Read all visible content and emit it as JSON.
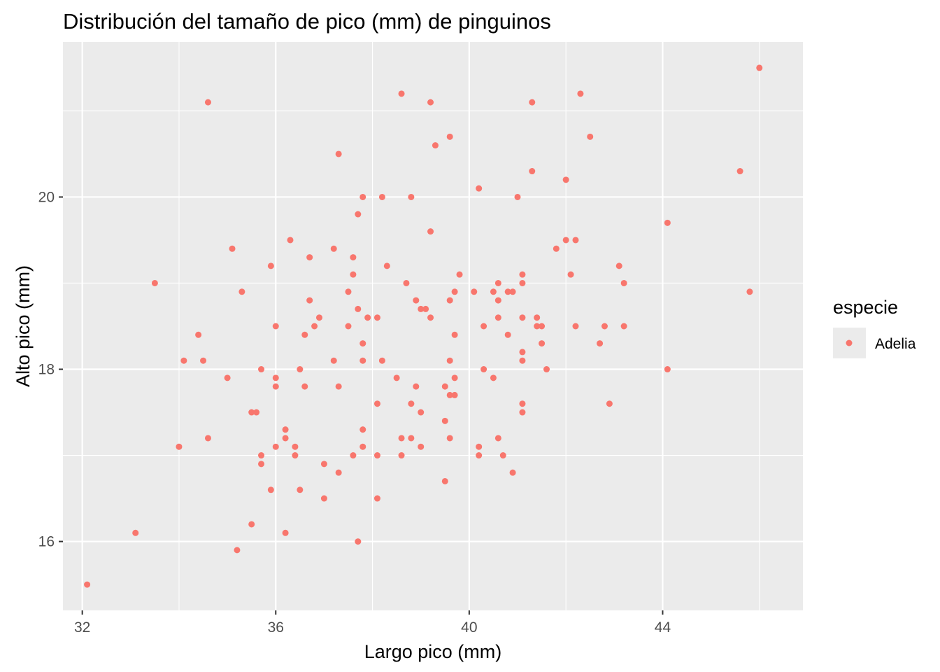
{
  "chart_data": {
    "type": "scatter",
    "title": "Distribución del tamaño de pico (mm) de pinguinos",
    "xlabel": "Largo pico (mm)",
    "ylabel": "Alto pico (mm)",
    "xlim": [
      31.6,
      46.9
    ],
    "ylim": [
      15.2,
      21.8
    ],
    "x_ticks": [
      32,
      36,
      40,
      44
    ],
    "y_ticks": [
      16,
      18,
      20
    ],
    "x_tick_labels": [
      "32",
      "36",
      "40",
      "44"
    ],
    "y_tick_labels": [
      "16",
      "18",
      "20"
    ],
    "grid": true,
    "panel_background": "#ebebeb",
    "grid_color": "#ffffff",
    "legend": {
      "title": "especie",
      "position": "right",
      "entries": [
        {
          "label": "Adelia",
          "color": "#f8766d"
        }
      ]
    },
    "series": [
      {
        "name": "Adelia",
        "color": "#f8766d",
        "points": [
          [
            32.1,
            15.5
          ],
          [
            33.1,
            16.1
          ],
          [
            33.5,
            19.0
          ],
          [
            34.0,
            17.1
          ],
          [
            34.1,
            18.1
          ],
          [
            34.4,
            18.4
          ],
          [
            34.5,
            18.1
          ],
          [
            34.6,
            21.1
          ],
          [
            34.6,
            17.2
          ],
          [
            35.0,
            17.9
          ],
          [
            35.1,
            19.4
          ],
          [
            35.2,
            15.9
          ],
          [
            35.3,
            18.9
          ],
          [
            35.5,
            17.5
          ],
          [
            35.5,
            16.2
          ],
          [
            35.6,
            17.5
          ],
          [
            35.7,
            18.0
          ],
          [
            35.7,
            17.0
          ],
          [
            35.7,
            16.9
          ],
          [
            35.9,
            19.2
          ],
          [
            35.9,
            16.6
          ],
          [
            36.0,
            18.5
          ],
          [
            36.0,
            17.9
          ],
          [
            36.0,
            17.8
          ],
          [
            36.0,
            17.1
          ],
          [
            36.2,
            17.3
          ],
          [
            36.2,
            17.2
          ],
          [
            36.2,
            16.1
          ],
          [
            36.3,
            19.5
          ],
          [
            36.4,
            17.1
          ],
          [
            36.4,
            17.0
          ],
          [
            36.5,
            18.0
          ],
          [
            36.5,
            16.6
          ],
          [
            36.6,
            18.4
          ],
          [
            36.6,
            17.8
          ],
          [
            36.7,
            19.3
          ],
          [
            36.7,
            18.8
          ],
          [
            36.8,
            18.5
          ],
          [
            36.9,
            18.6
          ],
          [
            37.0,
            16.9
          ],
          [
            37.0,
            16.5
          ],
          [
            37.2,
            19.4
          ],
          [
            37.2,
            18.1
          ],
          [
            37.3,
            20.5
          ],
          [
            37.3,
            17.8
          ],
          [
            37.3,
            16.8
          ],
          [
            37.5,
            18.9
          ],
          [
            37.5,
            18.5
          ],
          [
            37.6,
            19.3
          ],
          [
            37.6,
            19.1
          ],
          [
            37.6,
            17.0
          ],
          [
            37.7,
            19.8
          ],
          [
            37.7,
            18.7
          ],
          [
            37.7,
            16.0
          ],
          [
            37.8,
            20.0
          ],
          [
            37.8,
            18.3
          ],
          [
            37.8,
            18.1
          ],
          [
            37.8,
            17.3
          ],
          [
            37.8,
            17.1
          ],
          [
            37.9,
            18.6
          ],
          [
            38.1,
            18.6
          ],
          [
            38.1,
            17.6
          ],
          [
            38.1,
            17.0
          ],
          [
            38.1,
            16.5
          ],
          [
            38.2,
            20.0
          ],
          [
            38.2,
            18.1
          ],
          [
            38.3,
            19.2
          ],
          [
            38.5,
            17.9
          ],
          [
            38.6,
            21.2
          ],
          [
            38.6,
            17.2
          ],
          [
            38.6,
            17.0
          ],
          [
            38.7,
            19.0
          ],
          [
            38.8,
            20.0
          ],
          [
            38.8,
            17.6
          ],
          [
            38.8,
            17.2
          ],
          [
            38.9,
            18.8
          ],
          [
            38.9,
            17.8
          ],
          [
            39.0,
            18.7
          ],
          [
            39.0,
            17.5
          ],
          [
            39.0,
            17.1
          ],
          [
            39.1,
            18.7
          ],
          [
            39.2,
            21.1
          ],
          [
            39.2,
            19.6
          ],
          [
            39.2,
            18.6
          ],
          [
            39.3,
            20.6
          ],
          [
            39.5,
            17.8
          ],
          [
            39.5,
            17.4
          ],
          [
            39.5,
            16.7
          ],
          [
            39.6,
            20.7
          ],
          [
            39.6,
            18.8
          ],
          [
            39.6,
            18.1
          ],
          [
            39.6,
            17.7
          ],
          [
            39.6,
            17.2
          ],
          [
            39.7,
            18.9
          ],
          [
            39.7,
            18.4
          ],
          [
            39.7,
            17.9
          ],
          [
            39.7,
            17.7
          ],
          [
            39.8,
            19.1
          ],
          [
            40.1,
            18.9
          ],
          [
            40.2,
            20.1
          ],
          [
            40.2,
            17.1
          ],
          [
            40.2,
            17.0
          ],
          [
            40.3,
            18.5
          ],
          [
            40.3,
            18.0
          ],
          [
            40.5,
            18.9
          ],
          [
            40.5,
            17.9
          ],
          [
            40.6,
            19.0
          ],
          [
            40.6,
            18.8
          ],
          [
            40.6,
            18.6
          ],
          [
            40.6,
            17.2
          ],
          [
            40.7,
            17.0
          ],
          [
            40.8,
            18.9
          ],
          [
            40.8,
            18.4
          ],
          [
            40.9,
            18.9
          ],
          [
            40.9,
            16.8
          ],
          [
            41.0,
            20.0
          ],
          [
            41.1,
            19.1
          ],
          [
            41.1,
            19.0
          ],
          [
            41.1,
            18.6
          ],
          [
            41.1,
            18.2
          ],
          [
            41.1,
            18.1
          ],
          [
            41.1,
            17.6
          ],
          [
            41.1,
            17.5
          ],
          [
            41.3,
            21.1
          ],
          [
            41.3,
            20.3
          ],
          [
            41.4,
            18.6
          ],
          [
            41.4,
            18.5
          ],
          [
            41.5,
            18.5
          ],
          [
            41.5,
            18.3
          ],
          [
            41.6,
            18.0
          ],
          [
            41.8,
            19.4
          ],
          [
            42.0,
            20.2
          ],
          [
            42.0,
            19.5
          ],
          [
            42.1,
            19.1
          ],
          [
            42.2,
            19.5
          ],
          [
            42.2,
            18.5
          ],
          [
            42.3,
            21.2
          ],
          [
            42.5,
            20.7
          ],
          [
            42.7,
            18.3
          ],
          [
            42.8,
            18.5
          ],
          [
            42.9,
            17.6
          ],
          [
            43.1,
            19.2
          ],
          [
            43.2,
            19.0
          ],
          [
            43.2,
            18.5
          ],
          [
            44.1,
            19.7
          ],
          [
            44.1,
            18.0
          ],
          [
            45.6,
            20.3
          ],
          [
            45.8,
            18.9
          ],
          [
            46.0,
            21.5
          ]
        ]
      }
    ]
  }
}
